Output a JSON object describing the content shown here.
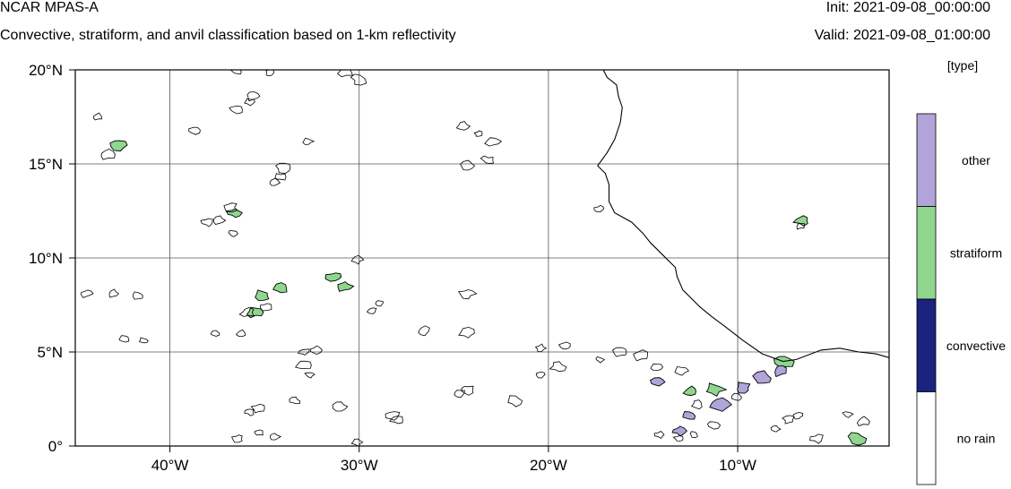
{
  "header": {
    "model_name": "NCAR MPAS-A",
    "description": "Convective, stratiform, and anvil classification based on 1-km reflectivity",
    "init": "Init: 2021-09-08_00:00:00",
    "valid": "Valid: 2021-09-08_01:00:00"
  },
  "map": {
    "lon_range": [
      -45,
      -2
    ],
    "lat_range": [
      0,
      20
    ],
    "grid": true,
    "x_ticks": [
      {
        "lon": -40,
        "label": "40°W"
      },
      {
        "lon": -30,
        "label": "30°W"
      },
      {
        "lon": -20,
        "label": "20°W"
      },
      {
        "lon": -10,
        "label": "10°W"
      }
    ],
    "y_ticks": [
      {
        "lat": 0,
        "label": "0°"
      },
      {
        "lat": 5,
        "label": "5°N"
      },
      {
        "lat": 10,
        "label": "10°N"
      },
      {
        "lat": 15,
        "label": "15°N"
      },
      {
        "lat": 20,
        "label": "20°N"
      }
    ],
    "coastline": [
      [
        -17.1,
        20.0
      ],
      [
        -16.9,
        19.6
      ],
      [
        -16.4,
        19.2
      ],
      [
        -16.3,
        18.6
      ],
      [
        -16.1,
        18.0
      ],
      [
        -16.2,
        17.2
      ],
      [
        -16.5,
        16.3
      ],
      [
        -16.9,
        15.6
      ],
      [
        -17.4,
        14.9
      ],
      [
        -17.0,
        14.5
      ],
      [
        -16.8,
        13.9
      ],
      [
        -16.8,
        13.0
      ],
      [
        -16.5,
        12.4
      ],
      [
        -15.6,
        11.9
      ],
      [
        -15.0,
        11.3
      ],
      [
        -14.6,
        10.8
      ],
      [
        -14.0,
        10.2
      ],
      [
        -13.3,
        9.5
      ],
      [
        -13.2,
        9.0
      ],
      [
        -12.9,
        8.3
      ],
      [
        -12.0,
        7.4
      ],
      [
        -11.4,
        6.9
      ],
      [
        -10.6,
        6.3
      ],
      [
        -9.7,
        5.6
      ],
      [
        -8.7,
        4.9
      ],
      [
        -7.6,
        4.5
      ],
      [
        -6.9,
        4.6
      ],
      [
        -5.6,
        5.1
      ],
      [
        -4.6,
        5.2
      ],
      [
        -3.6,
        5.0
      ],
      [
        -2.7,
        4.9
      ],
      [
        -2.0,
        4.7
      ]
    ]
  },
  "chart_data": {
    "type": "heatmap",
    "variable_unit": "[type]",
    "categories": [
      "no rain",
      "convective",
      "stratiform",
      "other"
    ],
    "colors": [
      "#ffffff",
      "#1a237e",
      "#8fd68f",
      "#b0a4d8"
    ],
    "cells": [
      {
        "lon": -35.1,
        "lat": 8.0,
        "category": "stratiform"
      },
      {
        "lon": -34.2,
        "lat": 8.4,
        "category": "stratiform"
      },
      {
        "lon": -35.5,
        "lat": 7.1,
        "category": "stratiform"
      },
      {
        "lon": -31.3,
        "lat": 9.0,
        "category": "stratiform"
      },
      {
        "lon": -30.8,
        "lat": 8.5,
        "category": "stratiform"
      },
      {
        "lon": -36.6,
        "lat": 12.4,
        "category": "stratiform"
      },
      {
        "lon": -42.7,
        "lat": 16.0,
        "category": "stratiform"
      },
      {
        "lon": -7.6,
        "lat": 4.5,
        "category": "stratiform"
      },
      {
        "lon": -11.2,
        "lat": 3.0,
        "category": "stratiform"
      },
      {
        "lon": -12.5,
        "lat": 2.9,
        "category": "stratiform"
      },
      {
        "lon": -3.7,
        "lat": 0.4,
        "category": "stratiform"
      },
      {
        "lon": -6.6,
        "lat": 12.0,
        "category": "stratiform"
      },
      {
        "lon": -9.7,
        "lat": 3.1,
        "category": "other"
      },
      {
        "lon": -10.9,
        "lat": 2.2,
        "category": "other"
      },
      {
        "lon": -12.6,
        "lat": 1.6,
        "category": "other"
      },
      {
        "lon": -13.1,
        "lat": 0.8,
        "category": "other"
      },
      {
        "lon": -14.2,
        "lat": 3.4,
        "category": "other"
      },
      {
        "lon": -8.7,
        "lat": 3.6,
        "category": "other"
      },
      {
        "lon": -7.7,
        "lat": 4.0,
        "category": "other"
      }
    ]
  }
}
